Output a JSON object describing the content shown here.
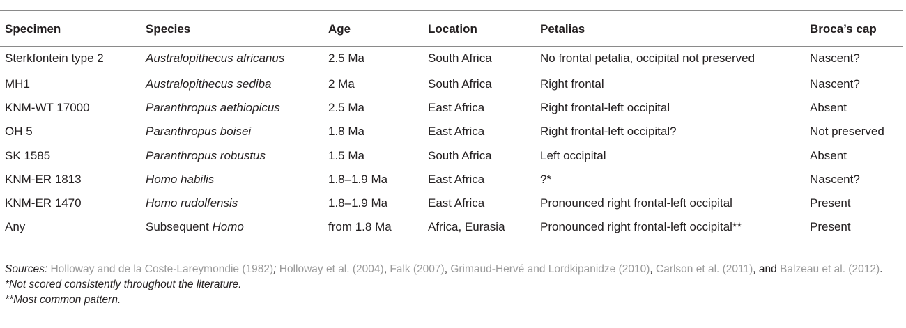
{
  "table": {
    "headers": [
      "Specimen",
      "Species",
      "Age",
      "Location",
      "Petalias",
      "Broca’s cap"
    ],
    "rows": [
      {
        "specimen": "Sterkfontein type 2",
        "species_plain": "",
        "species_italic": "Australopithecus africanus",
        "age": "2.5 Ma",
        "location": "South Africa",
        "petalias": "No frontal petalia, occipital not preserved",
        "broca": "Nascent?"
      },
      {
        "specimen": "MH1",
        "species_plain": "",
        "species_italic": "Australopithecus sediba",
        "age": "2 Ma",
        "location": "South Africa",
        "petalias": "Right frontal",
        "broca": "Nascent?"
      },
      {
        "specimen": "KNM-WT 17000",
        "species_plain": "",
        "species_italic": "Paranthropus aethiopicus",
        "age": "2.5 Ma",
        "location": "East Africa",
        "petalias": "Right frontal-left occipital",
        "broca": "Absent"
      },
      {
        "specimen": "OH 5",
        "species_plain": "",
        "species_italic": "Paranthropus boisei",
        "age": "1.8 Ma",
        "location": "East Africa",
        "petalias": "Right frontal-left occipital?",
        "broca": "Not preserved"
      },
      {
        "specimen": "SK 1585",
        "species_plain": "",
        "species_italic": "Paranthropus robustus",
        "age": "1.5 Ma",
        "location": "South Africa",
        "petalias": "Left occipital",
        "broca": "Absent"
      },
      {
        "specimen": "KNM-ER 1813",
        "species_plain": "",
        "species_italic": "Homo habilis",
        "age": "1.8–1.9 Ma",
        "location": "East Africa",
        "petalias": "?*",
        "broca": "Nascent?"
      },
      {
        "specimen": "KNM-ER 1470",
        "species_plain": "",
        "species_italic": "Homo rudolfensis",
        "age": "1.8–1.9 Ma",
        "location": "East Africa",
        "petalias": "Pronounced right frontal-left occipital",
        "broca": "Present"
      },
      {
        "specimen": "Any",
        "species_plain": "Subsequent ",
        "species_italic": "Homo",
        "age": "from 1.8 Ma",
        "location": "Africa, Eurasia",
        "petalias": "Pronounced right frontal-left occipital**",
        "broca": "Present"
      }
    ]
  },
  "notes": {
    "sources_label": "Sources:",
    "refs": [
      "Holloway and de la Coste-Lareymondie (1982)",
      "; ",
      "Holloway et al. (2004)",
      ", ",
      "Falk (2007)",
      ", ",
      "Grimaud-Hervé and Lordkipanidze (2010)",
      ", ",
      "Carlson et al. (2011)",
      ", and ",
      "Balzeau et al. (2012)",
      "."
    ],
    "footnote1": "*Not scored consistently throughout the literature.",
    "footnote2": "**Most common pattern."
  }
}
